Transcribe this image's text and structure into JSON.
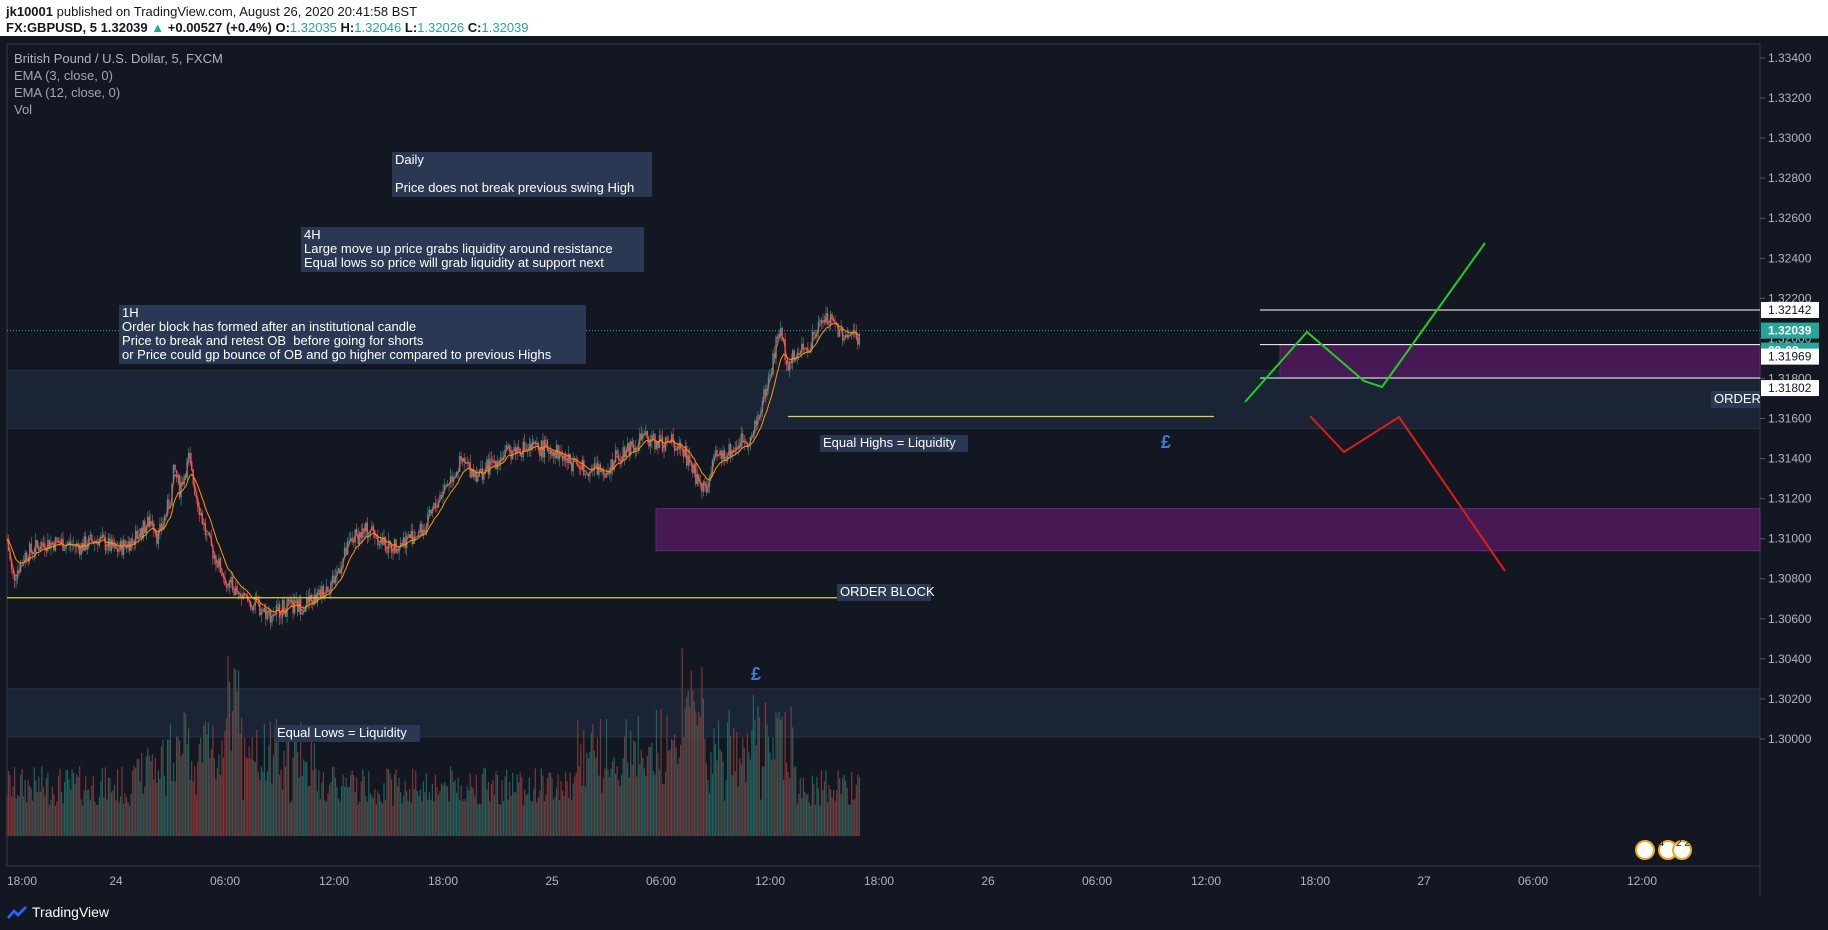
{
  "header": {
    "author": "jk10001",
    "published_text": "published on TradingView.com, August 26, 2020 20:41:58 BST",
    "symbol_line": "FX:GBPUSD, 5",
    "last_price": "1.32039",
    "change": "+0.00527 (+0.4%)",
    "o_label": "O:",
    "o_value": "1.32035",
    "h_label": "H:",
    "h_value": "1.32046",
    "l_label": "L:",
    "l_value": "1.32026",
    "c_label": "C:",
    "c_value": "1.32039"
  },
  "legend": {
    "instrument": "British Pound / U.S. Dollar, 5, FXCM",
    "ema_fast": "EMA (3, close, 0)",
    "ema_slow": "EMA (12, close, 0)",
    "volume": "Vol"
  },
  "notes": {
    "daily": "Daily\n\nPrice does not break previous swing High",
    "h4": "4H\nLarge move up price grabs liquidity around resistance\nEqual lows so price will grab liquidity at support next",
    "h1": "1H\nOrder block has formed after an institutional candle\nPrice to break and retest OB  before going for shorts\nor Price could gp bounce of OB and go higher compared to previous Highs",
    "equal_highs": "Equal Highs = Liquidity",
    "equal_lows": "Equal Lows = Liquidity",
    "order_block": "ORDER BLOCK",
    "order_right": "ORDER"
  },
  "markers": {
    "pound": "£"
  },
  "price_labels": {
    "high_line": "1.32142",
    "current": "1.32039",
    "countdown": "03:03",
    "ob_top": "1.31969",
    "ob_bottom": "1.31802"
  },
  "event_badges": {
    "badge_a": "34",
    "badge_b": "2 2 2"
  },
  "brand": {
    "name": "TradingView"
  },
  "colors": {
    "background": "#131722",
    "up_candle": "#26a69a",
    "down_candle": "#ef5350",
    "ema_fast": "#ef5350",
    "ema_slow": "#ff9800",
    "order_block": "#4a1a55",
    "zone": "#1c2536",
    "equal_line": "#e6d335",
    "bull_path": "#1fd11f",
    "bear_path": "#e01b1b",
    "current_price": "#26a69a"
  },
  "chart_data": {
    "type": "candlestick",
    "symbol": "GBPUSD",
    "timeframe": "5",
    "y_axis": {
      "ticks": [
        "1.33400",
        "1.33200",
        "1.33000",
        "1.32800",
        "1.32600",
        "1.32400",
        "1.32200",
        "1.32000",
        "1.31800",
        "1.31600",
        "1.31400",
        "1.31200",
        "1.31000",
        "1.30800",
        "1.30600",
        "1.30400",
        "1.30200",
        "1.30000"
      ],
      "range": [
        1.2988,
        1.3344
      ]
    },
    "x_axis": {
      "ticks": [
        "18:00",
        "24",
        "06:00",
        "12:00",
        "18:00",
        "25",
        "06:00",
        "12:00",
        "18:00",
        "26",
        "06:00",
        "12:00",
        "18:00",
        "27",
        "06:00",
        "12:00"
      ]
    },
    "price_path": [
      [
        0,
        1.31
      ],
      [
        0.3,
        1.308
      ],
      [
        1,
        1.3092
      ],
      [
        2,
        1.3098
      ],
      [
        3,
        1.3098
      ],
      [
        4,
        1.3096
      ],
      [
        5,
        1.31
      ],
      [
        6,
        1.3094
      ],
      [
        7,
        1.31
      ],
      [
        8,
        1.311
      ],
      [
        8.3,
        1.31
      ],
      [
        9,
        1.312
      ],
      [
        9.2,
        1.3135
      ],
      [
        9.5,
        1.3125
      ],
      [
        10,
        1.314
      ],
      [
        10.2,
        1.313
      ],
      [
        11,
        1.31
      ],
      [
        12,
        1.308
      ],
      [
        13,
        1.307
      ],
      [
        14,
        1.3065
      ],
      [
        14.5,
        1.3062
      ],
      [
        15,
        1.3065
      ],
      [
        16,
        1.3066
      ],
      [
        17,
        1.307
      ],
      [
        18,
        1.308
      ],
      [
        19,
        1.31
      ],
      [
        20,
        1.3105
      ],
      [
        21,
        1.3095
      ],
      [
        22,
        1.31
      ],
      [
        23,
        1.3105
      ],
      [
        24,
        1.3125
      ],
      [
        25,
        1.3138
      ],
      [
        26,
        1.3132
      ],
      [
        27,
        1.314
      ],
      [
        28,
        1.3145
      ],
      [
        29,
        1.3145
      ],
      [
        30,
        1.3145
      ],
      [
        31,
        1.3138
      ],
      [
        32,
        1.3135
      ],
      [
        33,
        1.3135
      ],
      [
        34,
        1.3145
      ],
      [
        35,
        1.315
      ],
      [
        36,
        1.3148
      ],
      [
        37,
        1.3148
      ],
      [
        38,
        1.313
      ],
      [
        38.5,
        1.3125
      ],
      [
        39,
        1.314
      ],
      [
        40,
        1.3145
      ],
      [
        40.5,
        1.315
      ],
      [
        41,
        1.315
      ],
      [
        42,
        1.3182
      ],
      [
        42.5,
        1.3205
      ],
      [
        43,
        1.3188
      ],
      [
        44,
        1.3195
      ],
      [
        45,
        1.321
      ],
      [
        46,
        1.3203
      ],
      [
        47,
        1.32
      ]
    ],
    "volume": "histogram per candle (values not labeled)",
    "annotations": [
      "Daily",
      "Price does not break previous swing High",
      "4H",
      "1H",
      "Equal Highs = Liquidity",
      "Equal Lows = Liquidity",
      "ORDER BLOCK",
      "ORDER"
    ],
    "zones": [
      {
        "name": "order block (lower)",
        "from": 1.3094,
        "to": 1.3115
      },
      {
        "name": "order block (upper)",
        "from": 1.31802,
        "to": 1.31969
      },
      {
        "name": "resistance zone",
        "from": 1.3155,
        "to": 1.3184
      },
      {
        "name": "volume zone",
        "from": 1.3001,
        "to": 1.3025
      }
    ],
    "levels": [
      {
        "name": "equal highs",
        "value": 1.3161
      },
      {
        "name": "equal lows",
        "value": 1.30705
      },
      {
        "name": "previous high",
        "value": 1.32142
      },
      {
        "name": "current",
        "value": 1.32039
      }
    ],
    "grid": false
  }
}
